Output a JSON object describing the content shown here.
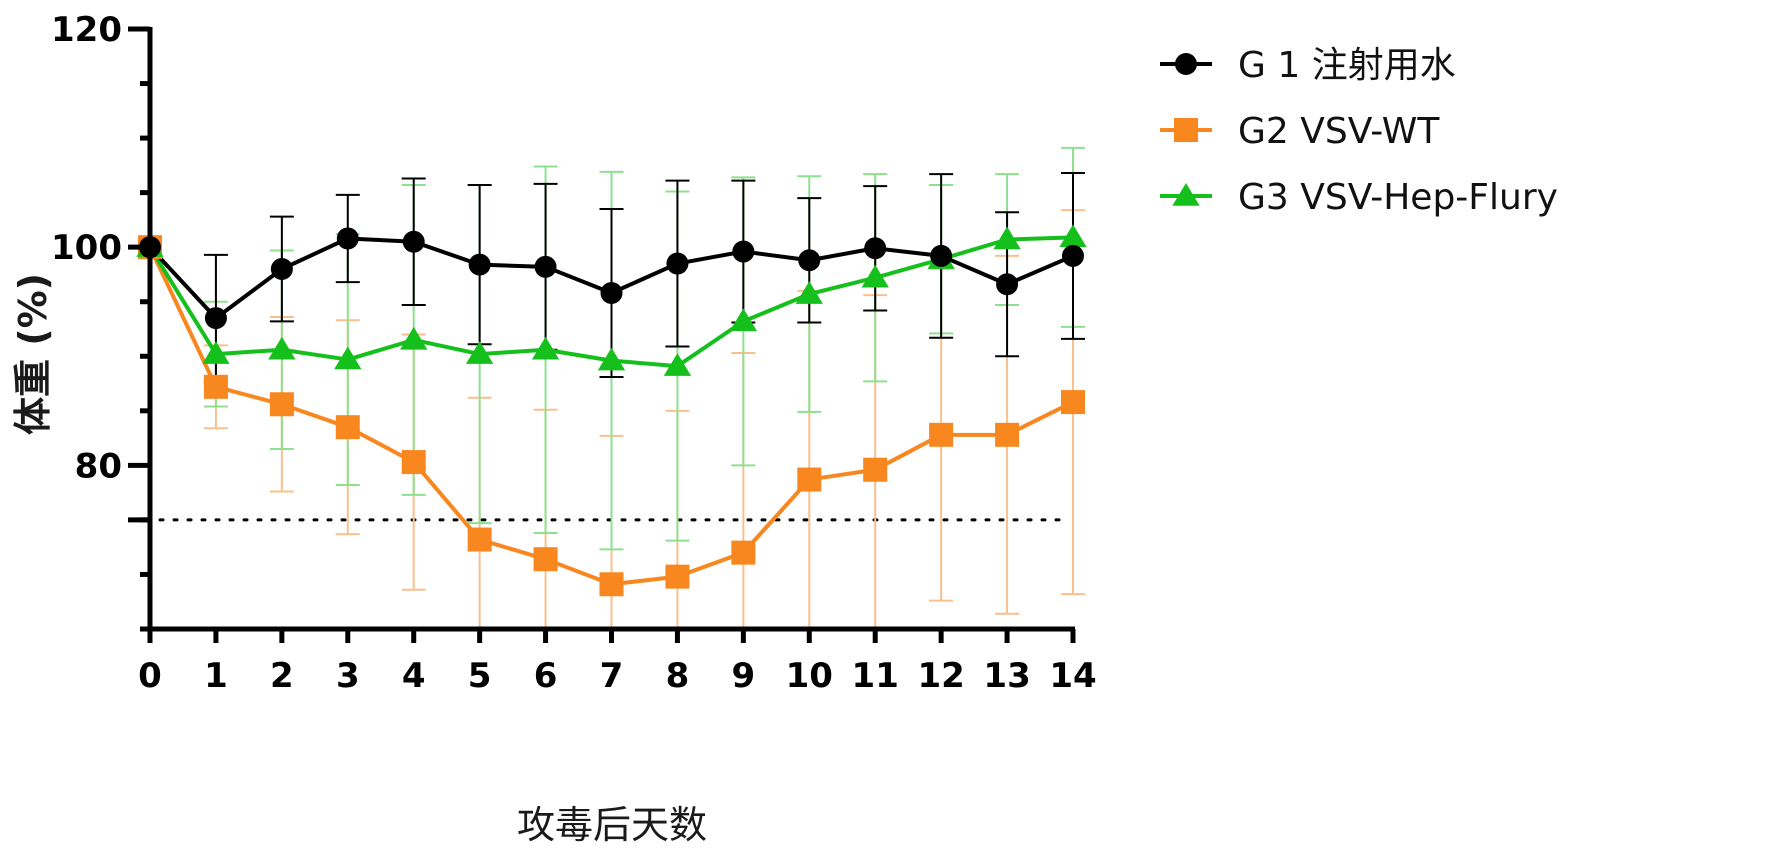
{
  "chart_data": {
    "type": "line",
    "xlabel": "攻毒后天数",
    "ylabel": "体重 (%)",
    "x": [
      0,
      1,
      2,
      3,
      4,
      5,
      6,
      7,
      8,
      9,
      10,
      11,
      12,
      13,
      14
    ],
    "xticks": [
      "0",
      "1",
      "2",
      "3",
      "4",
      "5",
      "6",
      "7",
      "8",
      "9",
      "10",
      "11",
      "12",
      "13",
      "14"
    ],
    "xlim": [
      0,
      14
    ],
    "ylim": [
      65,
      120
    ],
    "yticks": [
      "80",
      "100",
      "120"
    ],
    "reference_line": {
      "y": 75,
      "style": "dotted"
    },
    "grid": false,
    "legend": "top-right",
    "series": [
      {
        "name": "G 1 注射用水",
        "color": "#000000",
        "marker": "circle",
        "values": [
          100,
          93.5,
          98,
          100.8,
          100.5,
          98.4,
          98.2,
          95.8,
          98.5,
          99.6,
          98.8,
          99.9,
          99.2,
          96.6,
          99.2
        ],
        "error": [
          0,
          5.8,
          4.8,
          4.0,
          5.8,
          7.3,
          7.6,
          7.7,
          7.6,
          6.5,
          5.7,
          5.7,
          7.5,
          6.6,
          7.6
        ]
      },
      {
        "name": "G2 VSV-WT",
        "color": "#f7871e",
        "error_color": "#f9c08e",
        "marker": "square",
        "values": [
          100,
          87.2,
          85.6,
          83.5,
          80.3,
          73.2,
          71.4,
          69.1,
          69.8,
          72.0,
          78.7,
          79.6,
          82.8,
          82.8,
          85.8
        ],
        "error": [
          0,
          3.8,
          8.0,
          9.8,
          11.7,
          13.0,
          13.7,
          13.6,
          15.2,
          18.3,
          17.3,
          16.0,
          15.2,
          16.4,
          17.6
        ]
      },
      {
        "name": "G3 VSV-Hep-Flury",
        "color": "#16c01c",
        "error_color": "#8ee08f",
        "marker": "triangle",
        "values": [
          100,
          90.2,
          90.6,
          89.7,
          91.5,
          90.2,
          90.6,
          89.6,
          89.1,
          93.2,
          95.7,
          97.2,
          98.9,
          100.7,
          100.9
        ],
        "error": [
          0,
          4.8,
          9.1,
          11.5,
          14.2,
          15.5,
          16.8,
          17.3,
          16.0,
          13.2,
          10.8,
          9.5,
          6.8,
          6.0,
          8.2
        ]
      }
    ]
  }
}
